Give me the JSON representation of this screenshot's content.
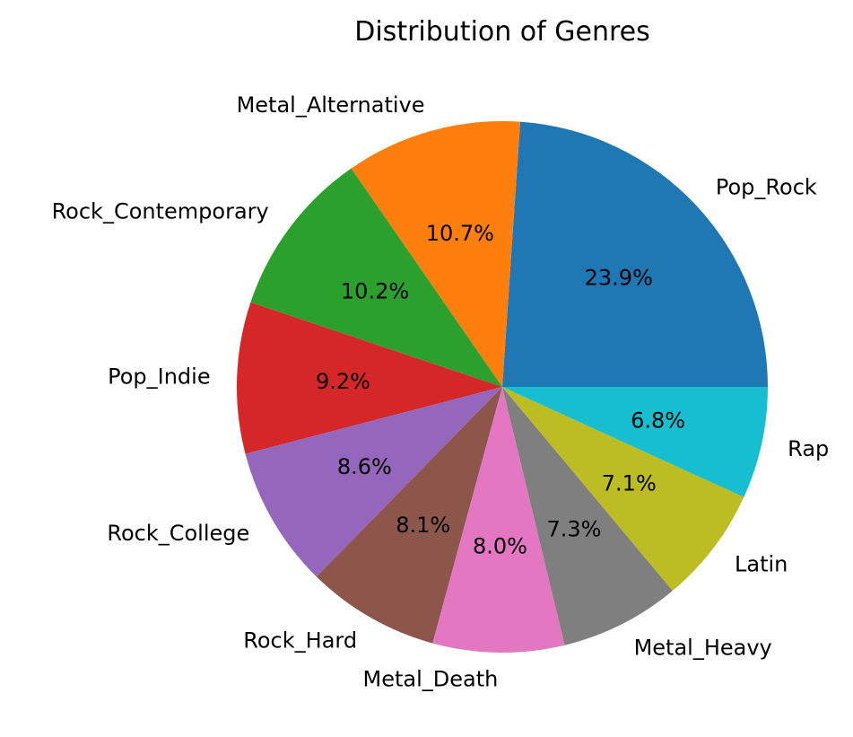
{
  "chart_data": {
    "type": "pie",
    "title": "Distribution of Genres",
    "start_angle_deg": 0,
    "direction": "counterclockwise",
    "slices": [
      {
        "label": "Pop_Rock",
        "value": 23.9,
        "pct_text": "23.9%",
        "color": "#1f77b4"
      },
      {
        "label": "Metal_Alternative",
        "value": 10.7,
        "pct_text": "10.7%",
        "color": "#ff7f0e"
      },
      {
        "label": "Rock_Contemporary",
        "value": 10.2,
        "pct_text": "10.2%",
        "color": "#2ca02c"
      },
      {
        "label": "Pop_Indie",
        "value": 9.2,
        "pct_text": "9.2%",
        "color": "#d62728"
      },
      {
        "label": "Rock_College",
        "value": 8.6,
        "pct_text": "8.6%",
        "color": "#9467bd"
      },
      {
        "label": "Rock_Hard",
        "value": 8.1,
        "pct_text": "8.1%",
        "color": "#8c564b"
      },
      {
        "label": "Metal_Death",
        "value": 8.0,
        "pct_text": "8.0%",
        "color": "#e377c2"
      },
      {
        "label": "Metal_Heavy",
        "value": 7.3,
        "pct_text": "7.3%",
        "color": "#7f7f7f"
      },
      {
        "label": "Latin",
        "value": 7.1,
        "pct_text": "7.1%",
        "color": "#bcbd22"
      },
      {
        "label": "Rap",
        "value": 6.8,
        "pct_text": "6.8%",
        "color": "#17becf"
      }
    ]
  }
}
